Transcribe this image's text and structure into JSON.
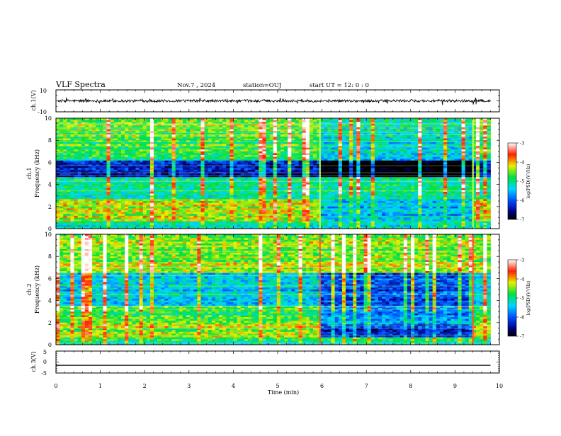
{
  "header": {
    "title": "VLF Spectra",
    "date": "Nov.7 , 2024",
    "station": "station=OUJ",
    "start": "start UT =  12: 0 : 0"
  },
  "chart_data": [
    {
      "type": "line",
      "name": "ch1-waveform",
      "ylabel": "ch.1(V)",
      "ylim": [
        -10,
        10
      ],
      "yticks": [
        "10",
        "-10"
      ],
      "xlim": [
        0,
        10
      ],
      "signal_end_min": 9.8,
      "baseline": 0,
      "noise_amplitude_v": 1.2,
      "spike_amplitude_v": 3.5
    },
    {
      "type": "heatmap",
      "name": "ch1-spectrogram",
      "ylabel": "ch.1\nFrequency (kHz)",
      "ylim": [
        0,
        10
      ],
      "yticks": [
        "0",
        "2",
        "4",
        "6",
        "8",
        "10"
      ],
      "xlim": [
        0,
        10
      ],
      "data_end_min": 9.8,
      "regime_change_min": [
        5.95,
        9.4
      ],
      "colorbar": {
        "range": [
          -7,
          -3
        ],
        "ticks": [
          "-3",
          "-4",
          "-5",
          "-6",
          "-7"
        ],
        "label": "log(PSD)(V²/Hz)"
      }
    },
    {
      "type": "heatmap",
      "name": "ch2-spectrogram",
      "ylabel": "ch.2\nFrequency (kHz)",
      "ylim": [
        0,
        10
      ],
      "yticks": [
        "0",
        "2",
        "4",
        "6",
        "8",
        "10"
      ],
      "xlim": [
        0,
        10
      ],
      "data_end_min": 9.8,
      "regime_change_min": [
        5.95,
        9.4
      ],
      "colorbar": {
        "range": [
          -7,
          -3
        ],
        "ticks": [
          "-3",
          "-4",
          "-5",
          "-6",
          "-7"
        ],
        "label": "log(PSD)(V²/Hz)"
      }
    },
    {
      "type": "line",
      "name": "ch3-waveform",
      "ylabel": "ch.3(V)",
      "ylim": [
        -5,
        5
      ],
      "yticks": [
        "5",
        "0",
        "-5"
      ],
      "xlim": [
        0,
        10
      ],
      "signal_end_min": 9.8,
      "constant_value_v": -1.5
    }
  ],
  "xaxis": {
    "label": "Time (min)",
    "ticks": [
      "0",
      "1",
      "2",
      "3",
      "4",
      "5",
      "6",
      "7",
      "8",
      "9",
      "10"
    ]
  }
}
